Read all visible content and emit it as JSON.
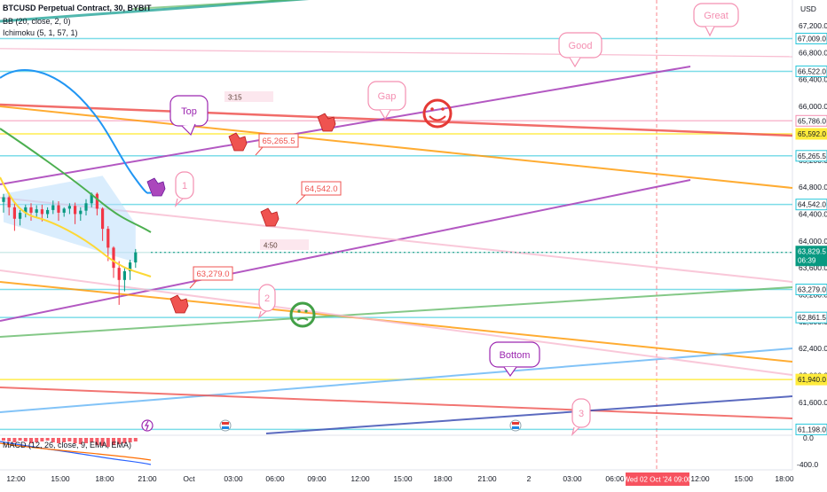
{
  "header": {
    "symbol_line": "BTCUSD Perpetual Contract, 30, BYBIT",
    "bb_line": "BB (20, close, 2, 0)",
    "ichimoku_line": "Ichimoku (5, 1, 57, 1)",
    "macd_line": "MACD (12, 26, close, 9, EMA, EMA)"
  },
  "chart_data": {
    "type": "line",
    "currency": "USD",
    "price_axis": {
      "ticks": [
        "67,200.0",
        "66,800.0",
        "66,400.0",
        "66,000.0",
        "65,600.0",
        "65,200.0",
        "64,800.0",
        "64,400.0",
        "64,000.0",
        "63,600.0",
        "63,200.0",
        "62,800.0",
        "62,400.0",
        "62,000.0",
        "61,600.0",
        "61,200.0"
      ],
      "range": [
        61100,
        67400
      ]
    },
    "macd_axis": {
      "ticks": [
        "0.0",
        "-400.0"
      ]
    },
    "time_axis": {
      "ticks": [
        "12:00",
        "15:00",
        "18:00",
        "21:00",
        "Oct",
        "03:00",
        "06:00",
        "09:00",
        "12:00",
        "15:00",
        "18:00",
        "21:00",
        "2",
        "03:00",
        "06:00",
        "12:00",
        "15:00",
        "18:00"
      ],
      "crosshair_label": "Wed 02 Oct '24  09:00"
    },
    "price_labels": [
      {
        "value": 67009,
        "text": "67,009.0",
        "color": "#26c6da"
      },
      {
        "value": 66522,
        "text": "66,522.0",
        "color": "#26c6da"
      },
      {
        "value": 65786,
        "text": "65,786.0",
        "color": "#f48fb1"
      },
      {
        "value": 65592,
        "text": "65,592.0",
        "color": "#ffeb3b"
      },
      {
        "value": 65265.5,
        "text": "65,265.5",
        "color": "#26c6da"
      },
      {
        "value": 64542,
        "text": "64,542.0",
        "color": "#26c6da"
      },
      {
        "value": 63829.5,
        "text": "63,829.5",
        "sub": "06:39",
        "color": "#089981"
      },
      {
        "value": 63279,
        "text": "63,279.0",
        "color": "#26c6da"
      },
      {
        "value": 62861.5,
        "text": "62,861.5",
        "color": "#26c6da"
      },
      {
        "value": 61940,
        "text": "61,940.0",
        "color": "#ffeb3b"
      },
      {
        "value": 61198,
        "text": "61,198.0",
        "color": "#26c6da"
      }
    ],
    "callouts": [
      {
        "label": "Great",
        "color": "#f48fb1"
      },
      {
        "label": "Good",
        "color": "#f48fb1"
      },
      {
        "label": "Gap",
        "color": "#f48fb1"
      },
      {
        "label": "Top",
        "color": "#9c27b0"
      },
      {
        "label": "Bottom",
        "color": "#9c27b0"
      },
      {
        "label": "1",
        "color": "#f48fb1"
      },
      {
        "label": "2",
        "color": "#f48fb1"
      },
      {
        "label": "3",
        "color": "#f48fb1"
      }
    ],
    "price_notes": [
      "65,265.5",
      "64,542.0",
      "63,279.0"
    ],
    "timers": [
      "3:15",
      "4:50"
    ],
    "candles": [
      {
        "o": 64580,
        "h": 64700,
        "c": 64650,
        "l": 64420
      },
      {
        "o": 64650,
        "h": 64720,
        "c": 64500,
        "l": 64380
      },
      {
        "o": 64500,
        "h": 64560,
        "c": 64330,
        "l": 64150
      },
      {
        "o": 64330,
        "h": 64460,
        "c": 64420,
        "l": 64230
      },
      {
        "o": 64420,
        "h": 64540,
        "c": 64500,
        "l": 64350
      },
      {
        "o": 64500,
        "h": 64560,
        "c": 64420,
        "l": 64300
      },
      {
        "o": 64420,
        "h": 64530,
        "c": 64470,
        "l": 64350
      },
      {
        "o": 64470,
        "h": 64540,
        "c": 64400,
        "l": 64290
      },
      {
        "o": 64400,
        "h": 64500,
        "c": 64460,
        "l": 64340
      },
      {
        "o": 64460,
        "h": 64600,
        "c": 64530,
        "l": 64400
      },
      {
        "o": 64530,
        "h": 64590,
        "c": 64420,
        "l": 64300
      },
      {
        "o": 64420,
        "h": 64500,
        "c": 64480,
        "l": 64360
      },
      {
        "o": 64480,
        "h": 64560,
        "c": 64520,
        "l": 64400
      },
      {
        "o": 64520,
        "h": 64570,
        "c": 64400,
        "l": 64250
      },
      {
        "o": 64400,
        "h": 64500,
        "c": 64450,
        "l": 64300
      },
      {
        "o": 64450,
        "h": 64620,
        "c": 64560,
        "l": 64380
      },
      {
        "o": 64560,
        "h": 64720,
        "c": 64700,
        "l": 64500
      },
      {
        "o": 64700,
        "h": 64720,
        "c": 64480,
        "l": 64380
      },
      {
        "o": 64480,
        "h": 64500,
        "c": 64180,
        "l": 64000
      },
      {
        "o": 64180,
        "h": 64220,
        "c": 63900,
        "l": 63700
      },
      {
        "o": 63900,
        "h": 63920,
        "c": 63600,
        "l": 63450
      },
      {
        "o": 63600,
        "h": 63700,
        "c": 63420,
        "l": 63050
      },
      {
        "o": 63420,
        "h": 63600,
        "c": 63550,
        "l": 63250
      },
      {
        "o": 63550,
        "h": 63720,
        "c": 63680,
        "l": 63420
      },
      {
        "o": 63680,
        "h": 63880,
        "c": 63830,
        "l": 63600
      }
    ]
  }
}
